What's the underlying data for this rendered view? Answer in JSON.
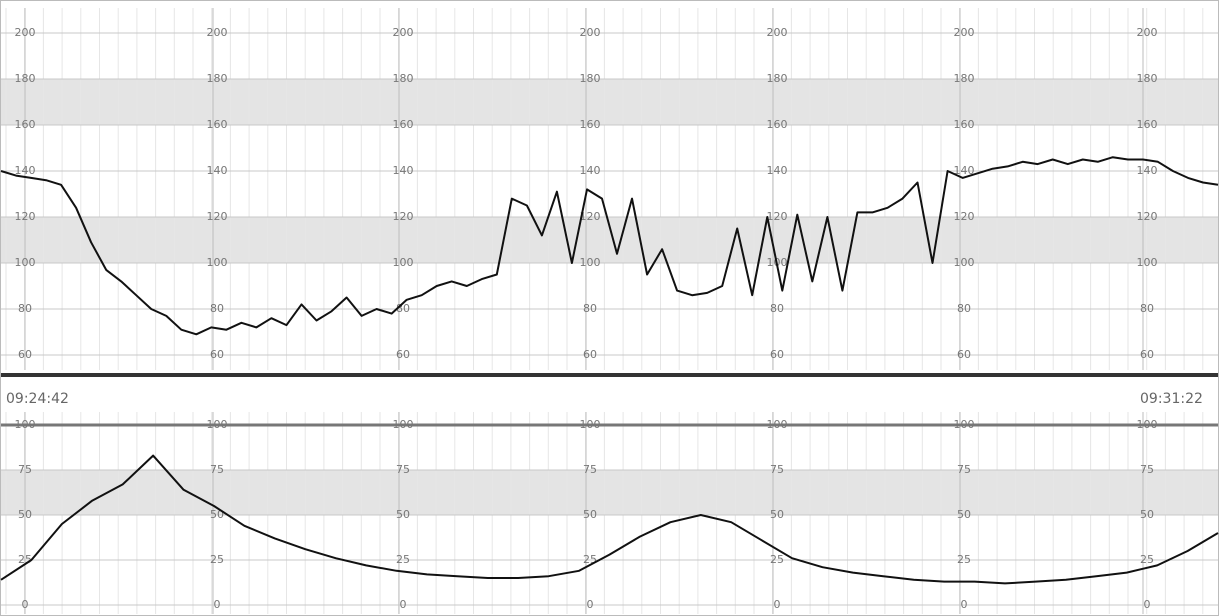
{
  "chart_data": [
    {
      "type": "line",
      "ylim": [
        50,
        210
      ],
      "yticks": [
        200,
        180,
        160,
        140,
        120,
        100,
        80,
        60
      ],
      "bands": [
        [
          160,
          180
        ],
        [
          100,
          120
        ]
      ],
      "grid": true,
      "series": [
        {
          "color": "#111111",
          "values": [
            140,
            138,
            137,
            136,
            134,
            124,
            109,
            97,
            92,
            86,
            80,
            77,
            71,
            69,
            72,
            71,
            74,
            72,
            76,
            73,
            82,
            75,
            79,
            85,
            77,
            80,
            78,
            84,
            86,
            90,
            92,
            90,
            93,
            95,
            128,
            125,
            112,
            131,
            100,
            132,
            128,
            104,
            128,
            95,
            106,
            88,
            86,
            87,
            90,
            115,
            86,
            120,
            88,
            121,
            92,
            120,
            88,
            122,
            122,
            124,
            128,
            135,
            100,
            140,
            137,
            139,
            141,
            142,
            144,
            143,
            145,
            143,
            145,
            144,
            146,
            145,
            145,
            144,
            140,
            137,
            135,
            134
          ]
        }
      ]
    },
    {
      "type": "line",
      "start_time": "09:24:42",
      "end_time": "09:31:22",
      "ylim": [
        -5,
        105
      ],
      "yticks": [
        100,
        75,
        50,
        25,
        0
      ],
      "bands": [
        [
          50,
          75
        ]
      ],
      "grid": true,
      "series": [
        {
          "color": "#111111",
          "values": [
            14,
            25,
            45,
            58,
            67,
            83,
            64,
            55,
            44,
            37,
            31,
            26,
            22,
            19,
            17,
            16,
            15,
            15,
            16,
            19,
            28,
            38,
            46,
            50,
            46,
            36,
            26,
            21,
            18,
            16,
            14,
            13,
            13,
            12,
            13,
            14,
            16,
            18,
            22,
            30,
            40
          ]
        }
      ]
    }
  ]
}
